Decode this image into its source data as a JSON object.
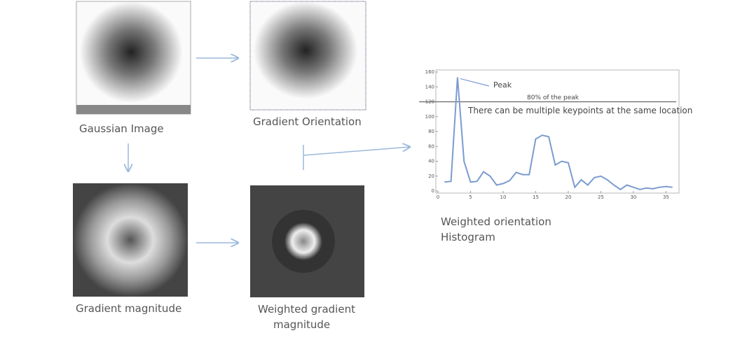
{
  "captions": {
    "gaussian": "Gaussian Image",
    "orientation": "Gradient Orientation",
    "magnitude": "Gradient magnitude",
    "weighted": [
      "Weighted gradient",
      "magnitude"
    ],
    "histogram": [
      "Weighted orientation",
      "Histogram"
    ]
  },
  "chart_data": {
    "type": "line",
    "x": [
      1,
      2,
      3,
      4,
      5,
      6,
      7,
      8,
      9,
      10,
      11,
      12,
      13,
      14,
      15,
      16,
      17,
      18,
      19,
      20,
      21,
      22,
      23,
      24,
      25,
      26,
      27,
      28,
      29,
      30,
      31,
      32,
      33,
      34,
      35,
      36
    ],
    "values": [
      12,
      13,
      153,
      40,
      12,
      13,
      26,
      20,
      8,
      10,
      14,
      25,
      22,
      22,
      70,
      75,
      73,
      35,
      40,
      38,
      5,
      15,
      8,
      18,
      20,
      15,
      8,
      2,
      8,
      5,
      2,
      4,
      3,
      5,
      6,
      5
    ],
    "color": "#7b9bd0",
    "xlim": [
      0,
      37
    ],
    "ylim": [
      0,
      160
    ],
    "xticks": [
      0,
      5,
      10,
      15,
      20,
      25,
      30,
      35
    ],
    "yticks": [
      0,
      20,
      40,
      60,
      80,
      100,
      120,
      140,
      160
    ],
    "hline": 120,
    "annotations": {
      "peak": "Peak",
      "threshold": "80% of the peak",
      "note": "There can be multiple keypoints at the same location"
    }
  }
}
